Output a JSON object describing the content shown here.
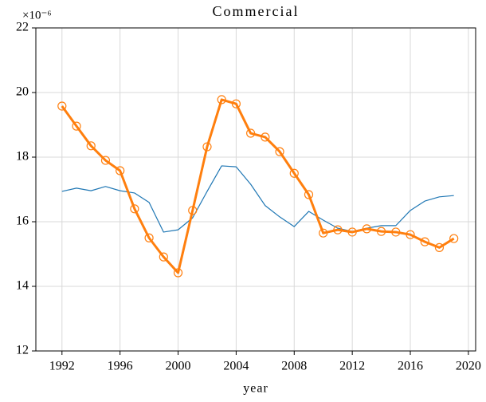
{
  "chart_data": {
    "type": "line",
    "title": "Commercial",
    "xlabel": "year",
    "y_offset_label": "×10⁻⁶",
    "x": [
      1992,
      1993,
      1994,
      1995,
      1996,
      1997,
      1998,
      1999,
      2000,
      2001,
      2002,
      2003,
      2004,
      2005,
      2006,
      2007,
      2008,
      2009,
      2010,
      2011,
      2012,
      2013,
      2014,
      2015,
      2016,
      2017,
      2018,
      2019
    ],
    "series": [
      {
        "color": "#1f77b4",
        "values": [
          16.94,
          17.04,
          16.96,
          17.09,
          16.96,
          16.89,
          16.6,
          15.68,
          15.75,
          16.12,
          16.94,
          17.73,
          17.7,
          17.16,
          16.5,
          16.15,
          15.85,
          16.32,
          16.05,
          15.8,
          15.7,
          15.8,
          15.88,
          15.88,
          16.35,
          16.64,
          16.77,
          16.81
        ]
      },
      {
        "color": "#ff7f0e",
        "marker": "open-circle",
        "values": [
          19.58,
          18.96,
          18.35,
          17.9,
          17.58,
          16.4,
          15.5,
          14.91,
          14.42,
          16.35,
          18.32,
          19.78,
          19.65,
          18.74,
          18.62,
          18.17,
          17.5,
          16.84,
          15.65,
          15.75,
          15.68,
          15.78,
          15.7,
          15.68,
          15.6,
          15.38,
          15.2,
          15.48
        ]
      }
    ],
    "xlim": [
      1990.2,
      2020.5
    ],
    "xticks": [
      1992,
      1996,
      2000,
      2004,
      2008,
      2012,
      2016,
      2020
    ],
    "ylim": [
      12,
      22
    ],
    "yticks": [
      12,
      14,
      16,
      18,
      20,
      22
    ],
    "grid": true
  }
}
